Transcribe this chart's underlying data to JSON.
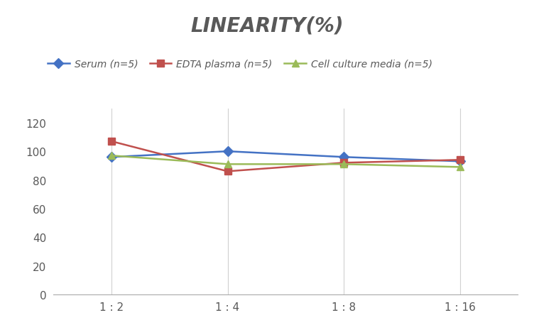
{
  "title": "LINEARITY(%)",
  "x_labels": [
    "1 : 2",
    "1 : 4",
    "1 : 8",
    "1 : 16"
  ],
  "x_positions": [
    0,
    1,
    2,
    3
  ],
  "series": [
    {
      "label": "Serum (n=5)",
      "values": [
        96,
        100,
        96,
        93
      ],
      "color": "#4472C4",
      "marker": "D",
      "markersize": 7,
      "linewidth": 1.8
    },
    {
      "label": "EDTA plasma (n=5)",
      "values": [
        107,
        86,
        92,
        94
      ],
      "color": "#C0504D",
      "marker": "s",
      "markersize": 7,
      "linewidth": 1.8
    },
    {
      "label": "Cell culture media (n=5)",
      "values": [
        97,
        91,
        91,
        89
      ],
      "color": "#9BBB59",
      "marker": "^",
      "markersize": 7,
      "linewidth": 1.8
    }
  ],
  "ylim": [
    0,
    130
  ],
  "yticks": [
    0,
    20,
    40,
    60,
    80,
    100,
    120
  ],
  "grid_color": "#D0D0D0",
  "background_color": "#FFFFFF",
  "title_fontsize": 20,
  "title_color": "#595959",
  "legend_fontsize": 10,
  "tick_fontsize": 11,
  "tick_color": "#595959"
}
